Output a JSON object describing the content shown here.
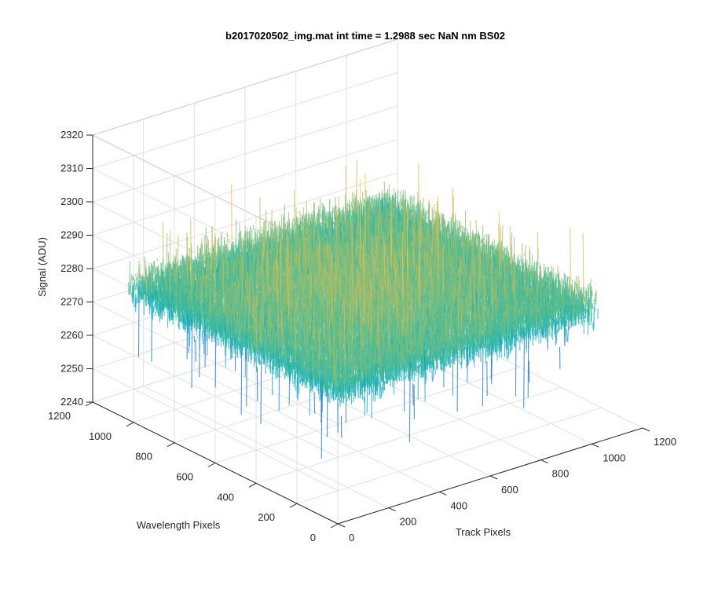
{
  "chart_data": {
    "type": "surface",
    "title": "b2017020502_img.mat int time = 1.2988 sec  NaN nm BS02",
    "xlabel": "Track Pixels",
    "ylabel": "Wavelength Pixels",
    "zlabel": "Signal (ADU)",
    "xlim": [
      0,
      1200
    ],
    "ylim": [
      0,
      1200
    ],
    "zlim": [
      2240,
      2320
    ],
    "xticks": [
      0,
      200,
      400,
      600,
      800,
      1000,
      1200
    ],
    "yticks": [
      0,
      200,
      400,
      600,
      800,
      1000,
      1200
    ],
    "zticks": [
      2240,
      2250,
      2260,
      2270,
      2280,
      2290,
      2300,
      2310,
      2320
    ],
    "xtick_labels": [
      "0",
      "200",
      "400",
      "600",
      "800",
      "1000",
      "1200"
    ],
    "ytick_labels": [
      "0",
      "200",
      "400",
      "600",
      "800",
      "1000",
      "1200"
    ],
    "ztick_labels": [
      "2240",
      "2250",
      "2260",
      "2270",
      "2280",
      "2290",
      "2300",
      "2310",
      "2320"
    ],
    "data_extent": {
      "x": [
        0,
        1024
      ],
      "y": [
        0,
        1024
      ]
    },
    "mean_signal": 2280,
    "signal_spread": [
      2248,
      2310
    ],
    "grid": true,
    "colormap": "parula"
  }
}
